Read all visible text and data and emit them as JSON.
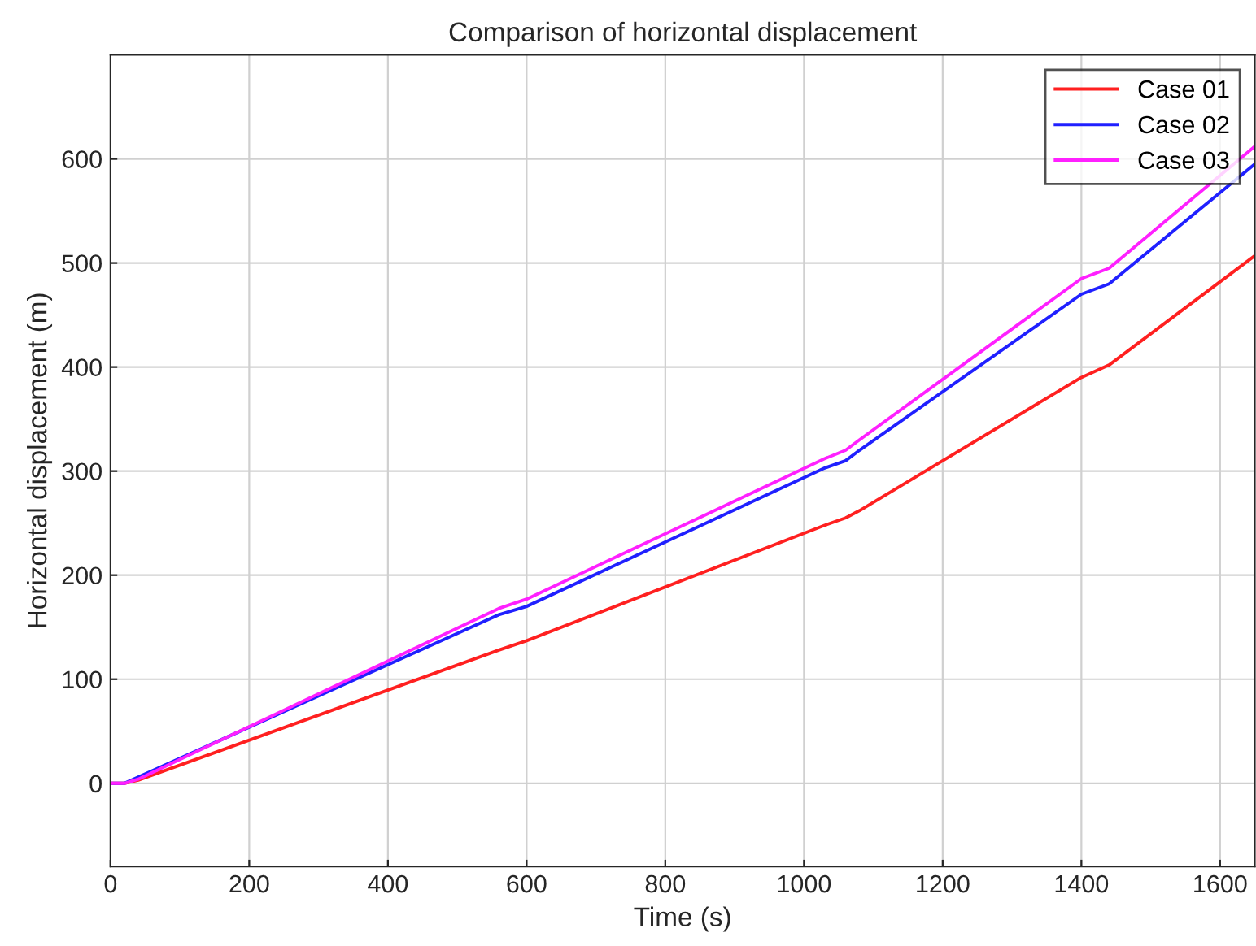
{
  "chart_data": {
    "type": "line",
    "title": "Comparison of horizontal displacement",
    "xlabel": "Time (s)",
    "ylabel": "Horizontal displacement (m)",
    "xlim": [
      0,
      1650
    ],
    "ylim": [
      -80,
      700
    ],
    "xticks": [
      0,
      200,
      400,
      600,
      800,
      1000,
      1200,
      1400,
      1600
    ],
    "yticks": [
      0,
      100,
      200,
      300,
      400,
      500,
      600
    ],
    "grid": true,
    "legend": "top right",
    "marker": "none",
    "line_style": "solid",
    "series": [
      {
        "name": "Case 01",
        "color": "#ff2020",
        "x": [
          0,
          20,
          40,
          560,
          600,
          1030,
          1060,
          1080,
          1400,
          1440,
          1650
        ],
        "values": [
          0,
          0,
          3,
          128,
          137,
          248,
          255,
          262,
          390,
          402,
          507
        ]
      },
      {
        "name": "Case 02",
        "color": "#2020ff",
        "x": [
          0,
          20,
          560,
          600,
          1030,
          1060,
          1080,
          1400,
          1440,
          1650
        ],
        "values": [
          0,
          0,
          162,
          170,
          303,
          310,
          320,
          470,
          480,
          595
        ]
      },
      {
        "name": "Case 03",
        "color": "#ff20ff",
        "x": [
          0,
          20,
          40,
          560,
          600,
          1030,
          1060,
          1080,
          1400,
          1440,
          1650
        ],
        "values": [
          0,
          0,
          4,
          168,
          177,
          312,
          320,
          330,
          485,
          495,
          612
        ]
      }
    ]
  }
}
